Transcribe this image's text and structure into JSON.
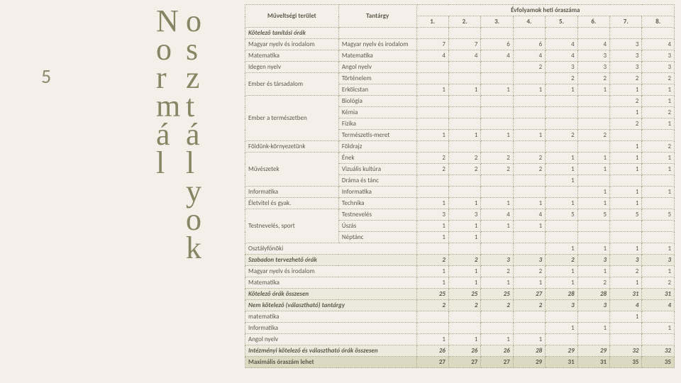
{
  "pageNumber": "5",
  "decorativeText": "Normál osztályok",
  "headers": {
    "area": "Műveltségi terület",
    "subject": "Tantárgy",
    "top": "Évfolyamok heti óraszáma",
    "cols": [
      "1.",
      "2.",
      "3.",
      "4.",
      "5.",
      "6.",
      "7.",
      "8."
    ]
  },
  "colors": {
    "background": "#f4f0e9",
    "border": "#a7a78a",
    "shade": "#eceadc",
    "shadeStrong": "#dcd8c2",
    "text": "#5a5a4a"
  },
  "rows": [
    {
      "type": "section",
      "area": "Kötelező tanítási órák",
      "subject": "",
      "v": [
        "",
        "",
        "",
        "",
        "",
        "",
        "",
        ""
      ]
    },
    {
      "area": "Magyar nyelv és irodalom",
      "subject": "Magyar nyelv és irodalom",
      "v": [
        "7",
        "7",
        "6",
        "6",
        "4",
        "4",
        "3",
        "4"
      ]
    },
    {
      "area": "Matematika",
      "subject": "Matematika",
      "v": [
        "4",
        "4",
        "4",
        "4",
        "4",
        "3",
        "3",
        "3"
      ]
    },
    {
      "area": "Idegen nyelv",
      "subject": "Angol nyelv",
      "v": [
        "",
        "",
        "",
        "2",
        "3",
        "3",
        "3",
        "3"
      ]
    },
    {
      "areaSpan": 2,
      "area": "Ember és társadalom",
      "subject": "Történelem",
      "v": [
        "",
        "",
        "",
        "",
        "2",
        "2",
        "2",
        "2"
      ]
    },
    {
      "subject": "Erkölcstan",
      "v": [
        "1",
        "1",
        "1",
        "1",
        "1",
        "1",
        "1",
        "1"
      ]
    },
    {
      "areaSpan": 4,
      "area": "Ember a természetben",
      "subject": "Biológia",
      "v": [
        "",
        "",
        "",
        "",
        "",
        "",
        "2",
        "1"
      ]
    },
    {
      "subject": "Kémia",
      "v": [
        "",
        "",
        "",
        "",
        "",
        "",
        "1",
        "2"
      ]
    },
    {
      "subject": "Fizika",
      "v": [
        "",
        "",
        "",
        "",
        "",
        "",
        "2",
        "1"
      ]
    },
    {
      "subject": "Természetis-meret",
      "v": [
        "1",
        "1",
        "1",
        "1",
        "2",
        "2",
        "",
        ""
      ]
    },
    {
      "area": "Földünk-környezetünk",
      "subject": "Földrajz",
      "v": [
        "",
        "",
        "",
        "",
        "",
        "",
        "1",
        "2"
      ]
    },
    {
      "areaSpan": 3,
      "area": "Művészetek",
      "subject": "Ének",
      "v": [
        "2",
        "2",
        "2",
        "2",
        "1",
        "1",
        "1",
        "1"
      ]
    },
    {
      "subject": "Vizuális kultúra",
      "v": [
        "2",
        "2",
        "2",
        "2",
        "1",
        "1",
        "1",
        "1"
      ]
    },
    {
      "subject": "Dráma és tánc",
      "v": [
        "",
        "",
        "",
        "",
        "1",
        "",
        "",
        ""
      ]
    },
    {
      "area": "Informatika",
      "subject": "Informatika",
      "v": [
        "",
        "",
        "",
        "",
        "",
        "1",
        "1",
        "1"
      ]
    },
    {
      "area": "Életvitel és gyak.",
      "subject": "Technika",
      "v": [
        "1",
        "1",
        "1",
        "1",
        "1",
        "1",
        "1",
        ""
      ]
    },
    {
      "areaSpan": 3,
      "area": "Testnevelés, sport",
      "subject": "Testnevelés",
      "v": [
        "3",
        "3",
        "4",
        "4",
        "5",
        "5",
        "5",
        "5"
      ]
    },
    {
      "subject": "Úszás",
      "v": [
        "1",
        "1",
        "1",
        "1",
        "",
        "",
        "",
        ""
      ]
    },
    {
      "subject": "Néptánc",
      "v": [
        "1",
        "1",
        "",
        "",
        "",
        "",
        "",
        ""
      ]
    },
    {
      "merge": true,
      "area": "Osztályfőnöki",
      "v": [
        "",
        "",
        "",
        "",
        "1",
        "1",
        "1",
        "1"
      ]
    },
    {
      "type": "shade",
      "merge": true,
      "area": "Szabadon tervezhető órák",
      "v": [
        "2",
        "2",
        "3",
        "3",
        "2",
        "3",
        "3",
        "3"
      ]
    },
    {
      "merge": true,
      "area": "Magyar nyelv és irodalom",
      "v": [
        "1",
        "1",
        "2",
        "2",
        "1",
        "1",
        "2",
        "1"
      ]
    },
    {
      "merge": true,
      "area": "Matematika",
      "v": [
        "1",
        "1",
        "1",
        "1",
        "1",
        "2",
        "1",
        "2"
      ]
    },
    {
      "type": "shade",
      "merge": true,
      "area": "Kötelező órák összesen",
      "v": [
        "25",
        "25",
        "25",
        "27",
        "28",
        "28",
        "31",
        "31"
      ]
    },
    {
      "type": "shade",
      "merge": true,
      "area": "Nem kötelező (választható) tantárgy",
      "v": [
        "2",
        "2",
        "2",
        "2",
        "3",
        "3",
        "4",
        "4"
      ]
    },
    {
      "merge": true,
      "area": "matematika",
      "v": [
        "",
        "",
        "",
        "",
        "",
        "",
        "1",
        ""
      ]
    },
    {
      "merge": true,
      "area": "Informatika",
      "v": [
        "",
        "",
        "",
        "",
        "1",
        "1",
        "",
        "1"
      ]
    },
    {
      "merge": true,
      "area": "Angol nyelv",
      "v": [
        "1",
        "1",
        "1",
        "1",
        "",
        "",
        "",
        ""
      ]
    },
    {
      "type": "shade",
      "merge": true,
      "area": "Intézményi kötelező és választható órák összesen",
      "v": [
        "26",
        "26",
        "26",
        "28",
        "29",
        "29",
        "32",
        "32"
      ]
    },
    {
      "type": "shade2",
      "merge": true,
      "area": "Maximális óraszám lehet",
      "v": [
        "27",
        "27",
        "27",
        "29",
        "31",
        "31",
        "35",
        "35"
      ]
    }
  ]
}
